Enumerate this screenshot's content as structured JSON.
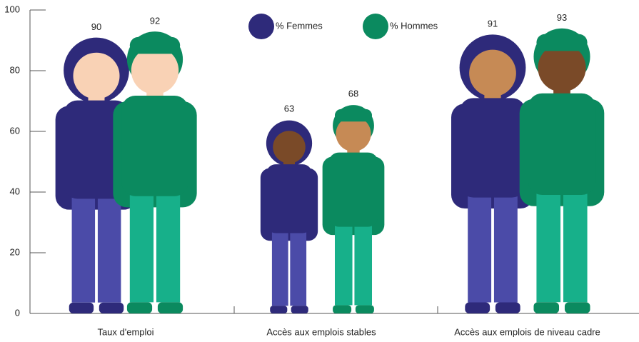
{
  "chart_data": {
    "type": "pictogram-bar",
    "categories": [
      "Taux d'emploi",
      "Accès aux emplois stables",
      "Accès aux emplois de niveau cadre"
    ],
    "series": [
      {
        "name": "% Femmes",
        "color": "#2e2a7a",
        "values": [
          90,
          63,
          91
        ]
      },
      {
        "name": "% Hommes",
        "color": "#0b8a5f",
        "values": [
          92,
          68,
          93
        ]
      }
    ],
    "ylim": [
      0,
      100
    ],
    "yticks": [
      0,
      20,
      40,
      60,
      80,
      100
    ]
  }
}
